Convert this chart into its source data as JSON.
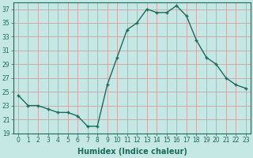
{
  "x": [
    0,
    1,
    2,
    3,
    4,
    5,
    6,
    7,
    8,
    9,
    10,
    11,
    12,
    13,
    14,
    15,
    16,
    17,
    18,
    19,
    20,
    21,
    22,
    23
  ],
  "y": [
    24.5,
    23,
    23,
    22.5,
    22,
    22,
    21.5,
    20,
    20,
    26,
    30,
    34,
    35,
    37,
    36.5,
    36.5,
    37.5,
    36,
    32.5,
    30,
    29,
    27,
    26,
    25.5
  ],
  "line_color": "#1a6b5a",
  "marker": "+",
  "marker_size": 3.5,
  "line_width": 1.0,
  "bg_color": "#c5e8e5",
  "grid_color": "#d4a0a0",
  "title": "",
  "xlabel": "Humidex (Indice chaleur)",
  "ylabel": "",
  "xlim": [
    -0.5,
    23.5
  ],
  "ylim": [
    19,
    38
  ],
  "yticks": [
    19,
    21,
    23,
    25,
    27,
    29,
    31,
    33,
    35,
    37
  ],
  "xticks": [
    0,
    1,
    2,
    3,
    4,
    5,
    6,
    7,
    8,
    9,
    10,
    11,
    12,
    13,
    14,
    15,
    16,
    17,
    18,
    19,
    20,
    21,
    22,
    23
  ],
  "tick_label_size": 5.5,
  "xlabel_size": 7,
  "axis_color": "#1a6b5a"
}
